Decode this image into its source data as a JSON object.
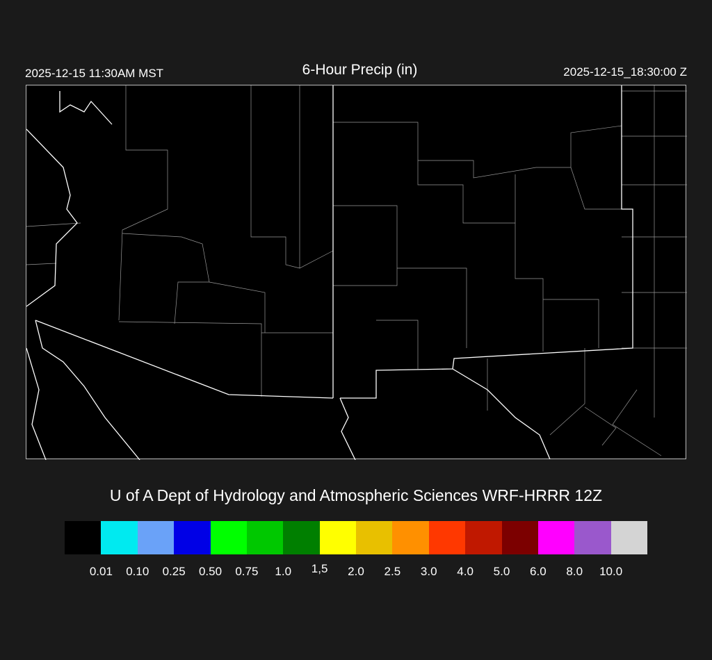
{
  "header": {
    "local_time": "2025-12-15 11:30AM MST",
    "title": "6-Hour Precip (in)",
    "valid_time": "2025-12-15_18:30:00 Z"
  },
  "credit": "U of A Dept of Hydrology and Atmospheric Sciences WRF-HRRR 12Z",
  "map": {
    "background": "#000000",
    "border_color": "#ffffff",
    "county_color": "#aaaaaa",
    "contour_color": "#3a2a1e"
  },
  "legend": {
    "colors": [
      "#000000",
      "#00eaf0",
      "#6aa2f8",
      "#0000e6",
      "#00ff00",
      "#00c800",
      "#007f00",
      "#ffff00",
      "#e8c000",
      "#ff9000",
      "#ff3800",
      "#c01800",
      "#7c0000",
      "#ff00ff",
      "#9a58cc",
      "#d4d4d4"
    ],
    "labels": [
      "0.01",
      "0.10",
      "0.25",
      "0.50",
      "0.75",
      "1.0",
      "1,5",
      "2.0",
      "2.5",
      "3.0",
      "4.0",
      "5.0",
      "6.0",
      "8.0",
      "10.0"
    ]
  }
}
